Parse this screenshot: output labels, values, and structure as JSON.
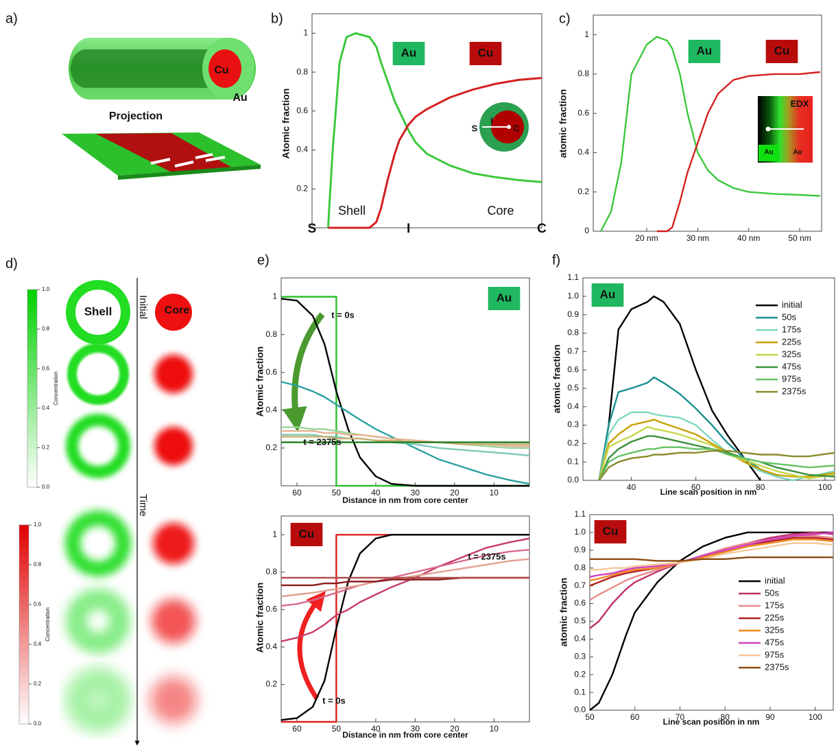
{
  "panel_labels": [
    "a)",
    "b)",
    "c)",
    "d)",
    "e)",
    "f)"
  ],
  "panel_a": {
    "core": "Cu",
    "shell": "Au",
    "projection": "Projection"
  },
  "panel_d": {
    "shell": "Shell",
    "core": "Core",
    "initial": "Initial",
    "time": "Time",
    "colorbar_label": "Concentration",
    "colorbar_ticks": [
      {
        "value": 0,
        "label": "0.0"
      },
      0.2,
      0.4,
      0.6,
      0.8,
      {
        "value": 1,
        "label": "1.0"
      }
    ]
  },
  "chart_data": [
    {
      "type": "line",
      "ylabel": "Atomic fraction",
      "annotations": [
        "Au",
        "Cu",
        "Shell",
        "Core",
        "S",
        "I",
        "C"
      ],
      "x": [
        0.07,
        0.09,
        0.12,
        0.15,
        0.19,
        0.25,
        0.28,
        0.3,
        0.33,
        0.36,
        0.38,
        0.42,
        0.45,
        0.5,
        0.6,
        0.7,
        0.8,
        0.9,
        1.0
      ],
      "xlim": [
        0,
        1
      ],
      "xticks": [
        {
          "value": 0,
          "label": "S"
        },
        {
          "value": 0.42,
          "label": "I"
        },
        {
          "value": 1,
          "label": "C"
        }
      ],
      "ylim": [
        0,
        1.1
      ],
      "yticks": [
        0.2,
        0.4,
        0.6,
        0.8,
        1
      ],
      "series": [
        {
          "color": "#3cc83c",
          "values": [
            0,
            0.4,
            0.85,
            0.98,
            1,
            0.98,
            0.93,
            0.85,
            0.75,
            0.65,
            0.6,
            0.5,
            0.44,
            0.38,
            0.32,
            0.28,
            0.26,
            0.245,
            0.235
          ]
        },
        {
          "color": "#d42020",
          "values": [
            0,
            0,
            0,
            0,
            0,
            0,
            0.03,
            0.1,
            0.25,
            0.38,
            0.45,
            0.53,
            0.57,
            0.61,
            0.67,
            0.71,
            0.74,
            0.76,
            0.77
          ]
        }
      ]
    },
    {
      "type": "line",
      "ylabel": "atomic fraction",
      "annotations": [
        "Au",
        "Cu",
        "EDX",
        "Au",
        "Au"
      ],
      "x": [
        11,
        13,
        15,
        17,
        20,
        22,
        24,
        25,
        26.5,
        28,
        30,
        32,
        34,
        37,
        40,
        45,
        50,
        54
      ],
      "xlim": [
        9.5,
        54.3
      ],
      "xticks": [
        {
          "value": 20,
          "label": "20 nm"
        },
        {
          "value": 30,
          "label": "30 nm"
        },
        {
          "value": 40,
          "label": "40 nm"
        },
        {
          "value": 50,
          "label": "50 nm"
        }
      ],
      "ylim": [
        0,
        1.1
      ],
      "yticks": [
        0,
        0.2,
        0.4,
        0.6,
        0.8,
        1
      ],
      "series": [
        {
          "color": "#3cc83c",
          "values": [
            0,
            0.1,
            0.35,
            0.8,
            0.95,
            0.99,
            0.97,
            0.93,
            0.8,
            0.6,
            0.4,
            0.31,
            0.26,
            0.22,
            0.2,
            0.19,
            0.185,
            0.18
          ]
        },
        {
          "color": "#d42020",
          "values": [
            null,
            null,
            null,
            null,
            null,
            0,
            0,
            0.02,
            0.15,
            0.3,
            0.45,
            0.6,
            0.7,
            0.77,
            0.79,
            0.8,
            0.8,
            0.81
          ]
        }
      ]
    },
    {
      "type": "line",
      "xlabel": "Distance in nm from core center",
      "ylabel": "Atomic fraction",
      "annotations": [
        "Au",
        "t = 0s",
        "t = 2375s"
      ],
      "x": [
        64,
        60,
        56,
        53,
        50,
        50,
        47,
        44,
        40,
        36,
        30,
        24,
        18,
        12,
        6,
        1
      ],
      "xlim": [
        64,
        1
      ],
      "xticks": [
        60,
        50,
        40,
        30,
        20,
        10
      ],
      "ylim": [
        0,
        1.1
      ],
      "yticks": [
        0.2,
        0.4,
        0.6,
        0.8,
        1
      ],
      "series": [
        {
          "color": "#2fbf2f",
          "values": [
            1,
            1,
            1,
            1,
            1,
            0,
            0,
            0,
            0,
            0,
            0,
            0,
            0,
            0,
            0,
            0
          ]
        },
        {
          "color": "#000000",
          "values": [
            0.99,
            0.98,
            0.9,
            0.75,
            0.5,
            0.5,
            0.3,
            0.15,
            0.05,
            0.01,
            0,
            0,
            0,
            0,
            0,
            0
          ]
        },
        {
          "color": "#2aa0a0",
          "values": [
            0.55,
            0.53,
            0.5,
            0.47,
            0.43,
            0.43,
            0.39,
            0.35,
            0.3,
            0.26,
            0.2,
            0.14,
            0.1,
            0.06,
            0.03,
            0.01
          ]
        },
        {
          "color": "#9ad49a",
          "values": [
            0.31,
            0.31,
            0.3,
            0.3,
            0.29,
            0.29,
            0.28,
            0.27,
            0.26,
            0.25,
            0.24,
            0.23,
            0.22,
            0.21,
            0.2,
            0.2
          ]
        },
        {
          "color": "#e8b090",
          "values": [
            0.29,
            0.29,
            0.29,
            0.28,
            0.28,
            0.28,
            0.27,
            0.27,
            0.26,
            0.25,
            0.24,
            0.23,
            0.22,
            0.22,
            0.21,
            0.21
          ]
        },
        {
          "color": "#7cc8b8",
          "values": [
            0.27,
            0.27,
            0.27,
            0.26,
            0.26,
            0.26,
            0.25,
            0.25,
            0.24,
            0.23,
            0.22,
            0.2,
            0.19,
            0.18,
            0.17,
            0.16
          ]
        },
        {
          "color": "#c8b070",
          "values": [
            0.26,
            0.26,
            0.26,
            0.26,
            0.25,
            0.25,
            0.25,
            0.25,
            0.24,
            0.24,
            0.23,
            0.23,
            0.22,
            0.22,
            0.22,
            0.22
          ]
        },
        {
          "color": "#1f7a1f",
          "values": [
            0.23,
            0.23,
            0.23,
            0.23,
            0.23,
            0.23,
            0.23,
            0.23,
            0.23,
            0.23,
            0.23,
            0.23,
            0.23,
            0.23,
            0.23,
            0.23
          ]
        }
      ]
    },
    {
      "type": "line",
      "xlabel": "Distance in nm from core center",
      "ylabel": "Atomic fraction",
      "annotations": [
        "Cu",
        "t = 2375s",
        "t = 0s"
      ],
      "x": [
        64,
        60,
        56,
        53,
        50,
        50,
        47,
        44,
        40,
        36,
        30,
        24,
        18,
        12,
        6,
        1
      ],
      "xlim": [
        64,
        1
      ],
      "xticks": [
        60,
        50,
        40,
        30,
        20,
        10
      ],
      "ylim": [
        0,
        1.1
      ],
      "yticks": [
        0.2,
        0.4,
        0.6,
        0.8,
        1
      ],
      "series": [
        {
          "color": "#e02020",
          "values": [
            0,
            0,
            0,
            0,
            0,
            1,
            1,
            1,
            1,
            1,
            1,
            1,
            1,
            1,
            1,
            1
          ]
        },
        {
          "color": "#000000",
          "values": [
            0.01,
            0.02,
            0.08,
            0.22,
            0.5,
            0.5,
            0.75,
            0.9,
            0.98,
            1,
            1,
            1,
            1,
            1,
            1,
            1
          ]
        },
        {
          "color": "#c83a6a",
          "values": [
            0.43,
            0.45,
            0.48,
            0.52,
            0.57,
            0.57,
            0.6,
            0.64,
            0.68,
            0.72,
            0.77,
            0.83,
            0.88,
            0.93,
            0.96,
            0.98
          ]
        },
        {
          "color": "#d86a8a",
          "values": [
            0.62,
            0.63,
            0.65,
            0.67,
            0.69,
            0.69,
            0.71,
            0.73,
            0.75,
            0.77,
            0.8,
            0.83,
            0.86,
            0.89,
            0.91,
            0.92
          ]
        },
        {
          "color": "#e0a090",
          "values": [
            0.67,
            0.68,
            0.69,
            0.7,
            0.71,
            0.71,
            0.72,
            0.73,
            0.75,
            0.76,
            0.78,
            0.8,
            0.82,
            0.84,
            0.86,
            0.87
          ]
        },
        {
          "color": "#8a1a1a",
          "values": [
            0.73,
            0.73,
            0.73,
            0.74,
            0.74,
            0.74,
            0.75,
            0.75,
            0.75,
            0.76,
            0.76,
            0.76,
            0.77,
            0.77,
            0.77,
            0.77
          ]
        },
        {
          "color": "#b05050",
          "values": [
            0.77,
            0.77,
            0.77,
            0.77,
            0.77,
            0.77,
            0.77,
            0.77,
            0.77,
            0.77,
            0.77,
            0.77,
            0.77,
            0.77,
            0.77,
            0.77
          ]
        }
      ]
    },
    {
      "type": "line",
      "xlabel": "Line scan position in nm",
      "ylabel": "atomic fraction",
      "annotations": [
        "Au"
      ],
      "legend": "upper right",
      "x": [
        30,
        33,
        36,
        40,
        45,
        47,
        50,
        55,
        60,
        65,
        70,
        75,
        80,
        85,
        90,
        95,
        103
      ],
      "xlim": [
        25,
        103
      ],
      "xticks": [
        40,
        60,
        80,
        100
      ],
      "ylim": [
        0,
        1.1
      ],
      "yticks": [
        {
          "value": 0,
          "label": "0.0"
        },
        0.1,
        0.2,
        0.3,
        0.4,
        0.5,
        0.6,
        0.7,
        0.8,
        0.9,
        {
          "value": 1,
          "label": "1.0"
        },
        1.1
      ],
      "series": [
        {
          "name": "initial",
          "color": "#000000",
          "values": [
            0,
            0.3,
            0.82,
            0.93,
            0.97,
            1.0,
            0.97,
            0.85,
            0.6,
            0.38,
            0.24,
            0.12,
            0,
            null,
            null,
            null,
            null
          ]
        },
        {
          "name": "50s",
          "color": "#1a8f8f",
          "values": [
            0,
            0.3,
            0.48,
            0.5,
            0.53,
            0.56,
            0.53,
            0.47,
            0.39,
            0.3,
            0.2,
            0.12,
            0.06,
            0.02,
            0,
            null,
            null
          ]
        },
        {
          "name": "175s",
          "color": "#7fd6c0",
          "values": [
            0,
            0.25,
            0.33,
            0.37,
            0.37,
            0.36,
            0.35,
            0.34,
            0.3,
            0.22,
            0.15,
            0.1,
            0.05,
            0.02,
            0,
            0.02,
            0.05
          ]
        },
        {
          "name": "225s",
          "color": "#c8a000",
          "values": [
            0,
            0.2,
            0.25,
            0.3,
            0.32,
            0.33,
            0.31,
            0.28,
            0.25,
            0.2,
            0.15,
            0.1,
            0.06,
            0.03,
            0.02,
            0.02,
            0.04
          ]
        },
        {
          "name": "325s",
          "color": "#c8d64a",
          "values": [
            0,
            0.18,
            0.21,
            0.24,
            0.29,
            0.28,
            0.27,
            0.25,
            0.22,
            0.19,
            0.14,
            0.11,
            0.08,
            0.05,
            0.03,
            0.01,
            0.03
          ]
        },
        {
          "name": "475s",
          "color": "#3a8f3a",
          "values": [
            0,
            0.12,
            0.17,
            0.21,
            0.24,
            0.24,
            0.23,
            0.21,
            0.19,
            0.17,
            0.15,
            0.12,
            0.1,
            0.07,
            0.05,
            0.03,
            0.02
          ]
        },
        {
          "name": "975s",
          "color": "#66c266",
          "values": [
            0,
            0.1,
            0.13,
            0.15,
            0.17,
            0.17,
            0.18,
            0.18,
            0.17,
            0.17,
            0.14,
            0.12,
            0.1,
            0.09,
            0.08,
            0.07,
            0.08
          ]
        },
        {
          "name": "2375s",
          "color": "#8a8a2a",
          "values": [
            0,
            0.07,
            0.1,
            0.12,
            0.13,
            0.14,
            0.14,
            0.15,
            0.15,
            0.16,
            0.16,
            0.15,
            0.14,
            0.14,
            0.13,
            0.13,
            0.15
          ]
        }
      ]
    },
    {
      "type": "line",
      "xlabel": "Line scan position in nm",
      "ylabel": "atomic fraction",
      "annotations": [
        "Cu"
      ],
      "legend": "lower right",
      "x": [
        50,
        52,
        55,
        58,
        60,
        65,
        70,
        75,
        80,
        85,
        90,
        95,
        100,
        104
      ],
      "xlim": [
        50,
        104
      ],
      "xticks": [
        50,
        60,
        70,
        80,
        90,
        100
      ],
      "ylim": [
        0,
        1.1
      ],
      "yticks": [
        {
          "value": 0,
          "label": "0.0"
        },
        0.1,
        0.2,
        0.3,
        0.4,
        0.5,
        0.6,
        0.7,
        0.8,
        0.9,
        {
          "value": 1,
          "label": "1.0"
        },
        1.1
      ],
      "series": [
        {
          "name": "initial",
          "color": "#000000",
          "values": [
            0,
            0.04,
            0.2,
            0.42,
            0.55,
            0.72,
            0.84,
            0.92,
            0.97,
            1.0,
            1.0,
            1.0,
            1.0,
            1.0
          ]
        },
        {
          "name": "50s",
          "color": "#c0306a",
          "values": [
            0.46,
            0.5,
            0.6,
            0.68,
            0.72,
            0.78,
            0.83,
            0.87,
            0.91,
            0.94,
            0.97,
            0.99,
            1.0,
            0.99
          ]
        },
        {
          "name": "175s",
          "color": "#e88a8a",
          "values": [
            0.62,
            0.65,
            0.69,
            0.73,
            0.75,
            0.79,
            0.83,
            0.87,
            0.91,
            0.94,
            0.96,
            0.98,
            0.98,
            0.97
          ]
        },
        {
          "name": "225s",
          "color": "#b22020",
          "values": [
            0.7,
            0.72,
            0.75,
            0.77,
            0.78,
            0.8,
            0.83,
            0.86,
            0.9,
            0.93,
            0.95,
            0.97,
            0.97,
            0.96
          ]
        },
        {
          "name": "325s",
          "color": "#f08a20",
          "values": [
            0.73,
            0.74,
            0.76,
            0.78,
            0.79,
            0.8,
            0.83,
            0.86,
            0.89,
            0.92,
            0.94,
            0.96,
            0.96,
            0.95
          ]
        },
        {
          "name": "475s",
          "color": "#d040c0",
          "values": [
            0.75,
            0.76,
            0.77,
            0.79,
            0.8,
            0.81,
            0.83,
            0.87,
            0.9,
            0.93,
            0.96,
            0.98,
            0.99,
            1.0
          ]
        },
        {
          "name": "975s",
          "color": "#f5c89a",
          "values": [
            0.79,
            0.79,
            0.8,
            0.8,
            0.81,
            0.82,
            0.83,
            0.85,
            0.88,
            0.9,
            0.92,
            0.94,
            0.94,
            0.93
          ]
        },
        {
          "name": "2375s",
          "color": "#8a4a10",
          "values": [
            0.85,
            0.85,
            0.85,
            0.85,
            0.85,
            0.84,
            0.84,
            0.85,
            0.85,
            0.86,
            0.86,
            0.86,
            0.86,
            0.86
          ]
        }
      ]
    }
  ]
}
